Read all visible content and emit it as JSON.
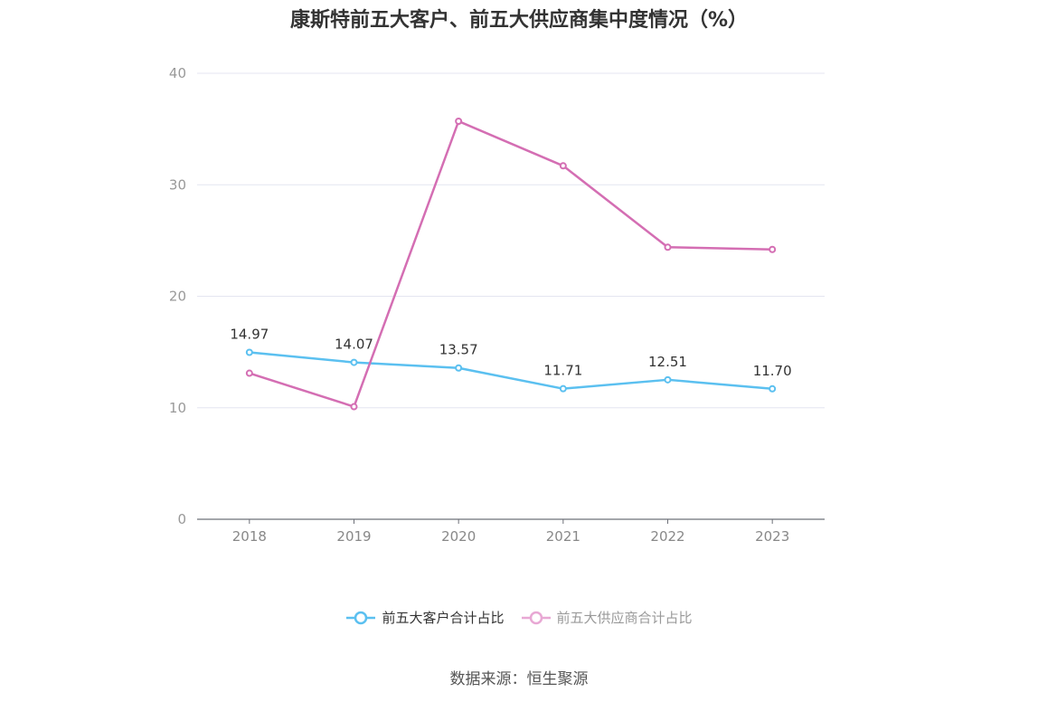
{
  "chart_data": {
    "type": "line",
    "title": "康斯特前五大客户、前五大供应商集中度情况（%）",
    "x": [
      "2018",
      "2019",
      "2020",
      "2021",
      "2022",
      "2023"
    ],
    "ylim": [
      0,
      40
    ],
    "yticks": [
      "0",
      "10",
      "20",
      "30",
      "40"
    ],
    "grid": true,
    "legend_position": "bottom-center",
    "series": [
      {
        "name": "前五大客户合计占比",
        "values": [
          14.97,
          14.07,
          13.57,
          11.71,
          12.51,
          11.7
        ],
        "labels": [
          "14.97",
          "14.07",
          "13.57",
          "11.71",
          "12.51",
          "11.70"
        ],
        "color": "#5bc0f0",
        "show_labels": true
      },
      {
        "name": "前五大供应商合计占比",
        "values": [
          13.1,
          10.1,
          35.7,
          31.7,
          24.4,
          24.2
        ],
        "color": "#d46eb3",
        "legend_color": "#e8a8d4",
        "show_labels": false
      }
    ]
  },
  "source": "数据来源：恒生聚源"
}
